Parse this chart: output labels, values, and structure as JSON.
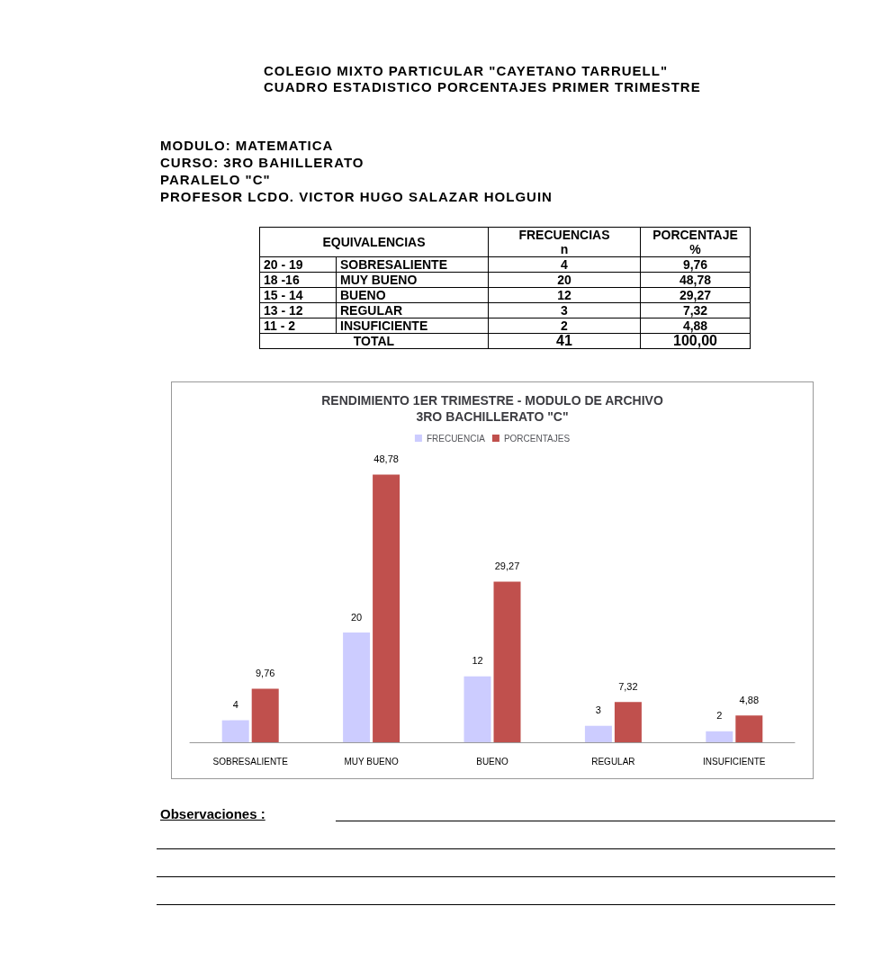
{
  "chart_data": {
    "type": "bar",
    "title": "RENDIMIENTO 1ER TRIMESTRE - MODULO DE ARCHIVO\n3RO BACHILLERATO \"C\"",
    "categories": [
      "SOBRESALIENTE",
      "MUY BUENO",
      "BUENO",
      "REGULAR",
      "INSUFICIENTE"
    ],
    "series": [
      {
        "name": "FRECUENCIA",
        "color": "#ccccff",
        "values": [
          4,
          20,
          12,
          3,
          2
        ],
        "value_labels": [
          "4",
          "20",
          "12",
          "3",
          "2"
        ]
      },
      {
        "name": "PORCENTAJES",
        "color": "#c0504d",
        "values": [
          9.76,
          48.78,
          29.27,
          7.32,
          4.88
        ],
        "value_labels": [
          "9,76",
          "48,78",
          "29,27",
          "7,32",
          "4,88"
        ]
      }
    ],
    "legend": "top",
    "annotations": [
      "COLEGIO MIXTO PARTICULAR  \"CAYETANO TARRUELL\"",
      "CUADRO ESTADISTICO PORCENTAJES PRIMER TRIMESTRE",
      "MODULO:  MATEMATICA",
      "CURSO:  3RO BAHILLERATO",
      "PARALELO \"C\"",
      "PROFESOR LCDO. VICTOR HUGO SALAZAR HOLGUIN",
      "EQUIVALENCIAS",
      "FRECUENCIAS",
      "n",
      "PORCENTAJE",
      "%",
      "20 - 19",
      "18 -16",
      "15 - 14",
      "13 - 12",
      "11 - 2",
      "TOTAL",
      "41",
      "100,00",
      "Observaciones :"
    ]
  }
}
